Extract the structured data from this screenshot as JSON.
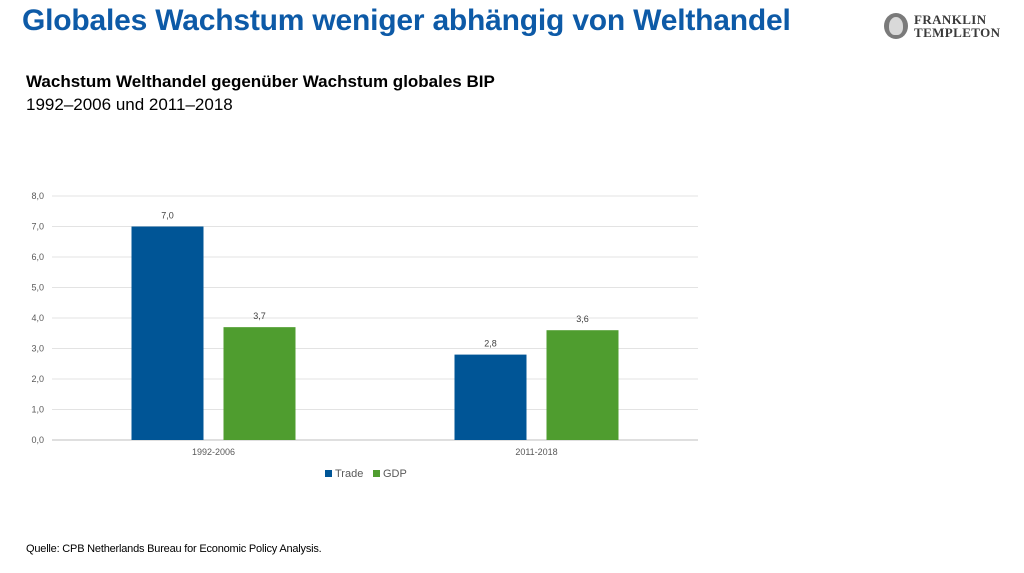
{
  "header": {
    "title": "Globales Wachstum weniger abhängig von Welthandel",
    "logo_line1": "FRANKLIN",
    "logo_line2": "TEMPLETON"
  },
  "chart_data": {
    "type": "bar",
    "title": "Wachstum Welthandel gegenüber Wachstum globales BIP",
    "subtitle": "1992–2006 und 2011–2018",
    "categories": [
      "1992-2006",
      "2011-2018"
    ],
    "series": [
      {
        "name": "Trade",
        "values": [
          7.0,
          2.8
        ],
        "labels": [
          "7,0",
          "2,8"
        ],
        "color": "#005596"
      },
      {
        "name": "GDP",
        "values": [
          3.7,
          3.6
        ],
        "labels": [
          "3,7",
          "3,6"
        ],
        "color": "#4f9d2f"
      }
    ],
    "ylim": [
      0,
      8
    ],
    "yticks": [
      0,
      1,
      2,
      3,
      4,
      5,
      6,
      7,
      8
    ],
    "ytick_labels": [
      "0,0",
      "1,0",
      "2,0",
      "3,0",
      "4,0",
      "5,0",
      "6,0",
      "7,0",
      "8,0"
    ],
    "grid": true,
    "legend_position": "bottom"
  },
  "footer": {
    "source": "Quelle: CPB Netherlands Bureau for Economic Policy Analysis."
  }
}
